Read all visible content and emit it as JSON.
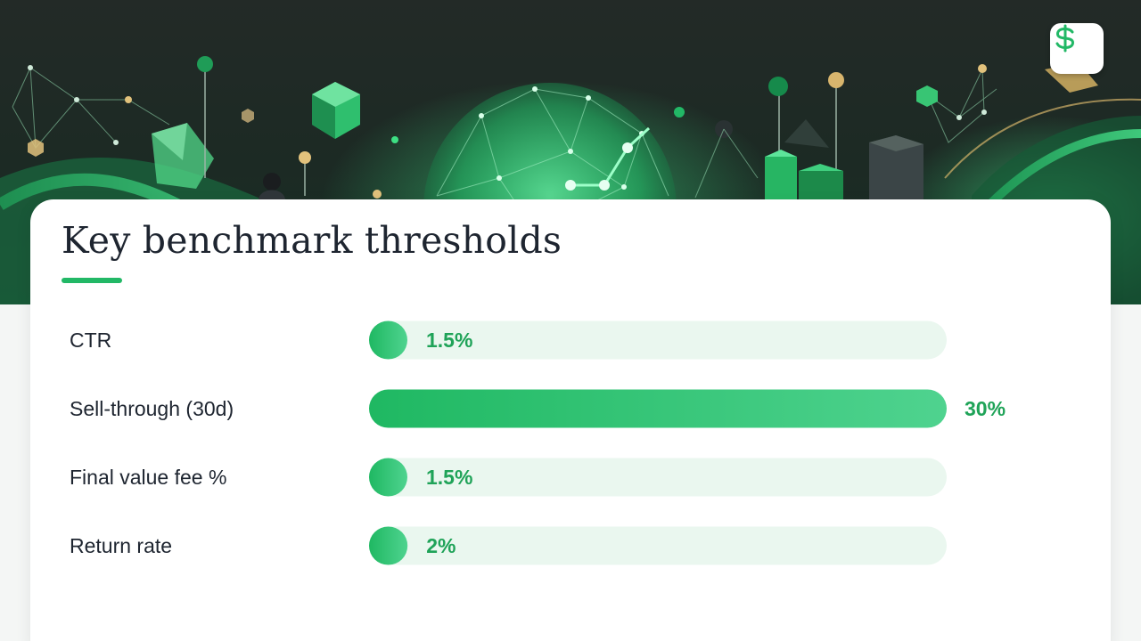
{
  "chart_data": {
    "type": "bar",
    "orientation": "horizontal",
    "title": "Key benchmark thresholds",
    "categories": [
      "CTR",
      "Sell-through (30d)",
      "Final value fee %",
      "Return rate"
    ],
    "values": [
      1.5,
      30,
      1.5,
      2
    ],
    "value_labels": [
      "1.5%",
      "30%",
      "1.5%",
      "2%"
    ],
    "unit": "%",
    "xlim": [
      0,
      30
    ],
    "grid": false,
    "legend": "none"
  },
  "colors": {
    "accent": "#22b866",
    "bar_fill_start": "#1fb862",
    "bar_fill_end": "#4fd38f",
    "track": "#eaf7ef",
    "value_text": "#1fa358",
    "label_text": "#1e2530"
  },
  "header": {
    "logo_icon": "dollar-sign-icon"
  }
}
